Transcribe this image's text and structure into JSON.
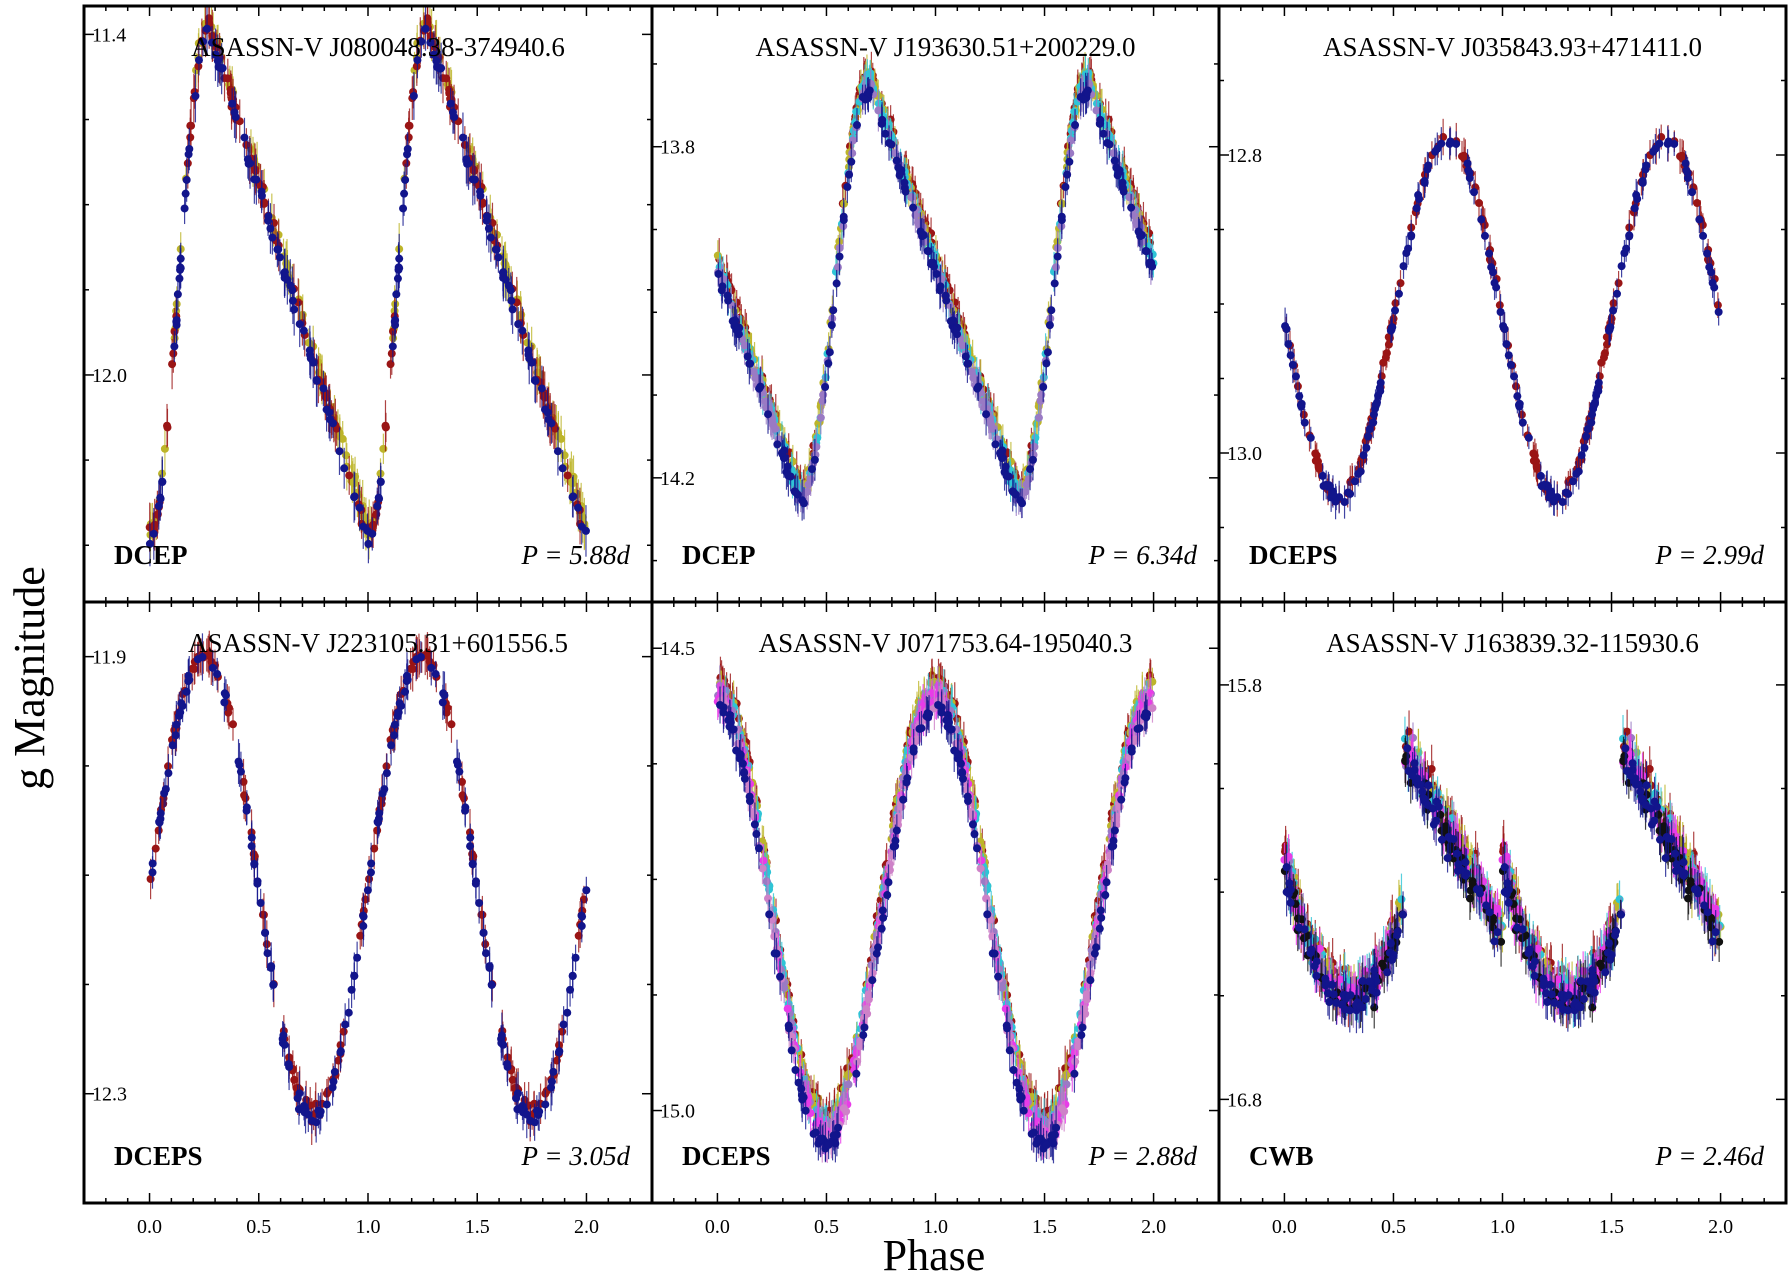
{
  "figure": {
    "xlabel": "Phase",
    "ylabel": "g  Magnitude"
  },
  "chart_data": [
    {
      "type": "scatter",
      "title": "ASASSN-V J080048.38-374940.6",
      "variable_type": "DCEP",
      "period_label": "P = 5.88d",
      "shape": "saw",
      "xlim": [
        -0.3,
        2.3
      ],
      "x_ticks": [
        "0.0",
        "0.5",
        "1.0",
        "1.5",
        "2.0"
      ],
      "y_ticks": [
        "11.4",
        "12.0"
      ],
      "y_tick_values": [
        11.4,
        12.0
      ],
      "ylim": [
        12.4,
        11.35
      ],
      "curve": {
        "bright": 11.38,
        "faint": 12.28,
        "max_phase": 0.27,
        "min_phase": 0.0
      },
      "series_colors": [
        "#bdb52a",
        "#9a1515",
        "#12158c"
      ]
    },
    {
      "type": "scatter",
      "title": "ASASSN-V J193630.51+200229.0",
      "variable_type": "DCEP",
      "period_label": "P = 6.34d",
      "shape": "saw",
      "xlim": [
        -0.3,
        2.3
      ],
      "x_ticks": [
        "0.0",
        "0.5",
        "1.0",
        "1.5",
        "2.0"
      ],
      "y_ticks": [
        "13.8",
        "14.2"
      ],
      "y_tick_values": [
        13.8,
        14.2
      ],
      "ylim": [
        14.35,
        13.63
      ],
      "curve": {
        "bright": 13.72,
        "faint": 14.22,
        "max_phase": 0.7,
        "min_phase": 0.38
      },
      "series_colors": [
        "#9a1515",
        "#bdb52a",
        "#2fc4d6",
        "#9a7ac4",
        "#12158c"
      ]
    },
    {
      "type": "scatter",
      "title": "ASASSN-V J035843.93+471411.0",
      "variable_type": "DCEPS",
      "period_label": "P = 2.99d",
      "shape": "sine",
      "xlim": [
        -0.3,
        2.3
      ],
      "x_ticks": [
        "0.0",
        "0.5",
        "1.0",
        "1.5",
        "2.0"
      ],
      "y_ticks": [
        "12.8",
        "13.0"
      ],
      "y_tick_values": [
        12.8,
        13.0
      ],
      "ylim": [
        13.1,
        12.7
      ],
      "curve": {
        "bright": 12.79,
        "faint": 13.03,
        "max_phase": 0.75,
        "min_phase": 0.25
      },
      "series_colors": [
        "#9a1515",
        "#12158c"
      ]
    },
    {
      "type": "scatter",
      "title": "ASASSN-V J223105.31+601556.5",
      "variable_type": "DCEPS",
      "period_label": "P = 3.05d",
      "shape": "sine",
      "xlim": [
        -0.3,
        2.3
      ],
      "x_ticks": [
        "0.0",
        "0.5",
        "1.0",
        "1.5",
        "2.0"
      ],
      "y_ticks": [
        "11.9",
        "12.3"
      ],
      "y_tick_values": [
        11.9,
        12.3
      ],
      "ylim": [
        12.4,
        11.85
      ],
      "curve": {
        "bright": 11.9,
        "faint": 12.32,
        "max_phase": 0.25,
        "min_phase": 0.75
      },
      "series_colors": [
        "#9a1515",
        "#12158c"
      ]
    },
    {
      "type": "scatter",
      "title": "ASASSN-V J071753.64-195040.3",
      "variable_type": "DCEPS",
      "period_label": "P = 2.88d",
      "shape": "sine",
      "xlim": [
        -0.3,
        2.3
      ],
      "x_ticks": [
        "0.0",
        "0.5",
        "1.0",
        "1.5",
        "2.0"
      ],
      "y_ticks": [
        "14.5",
        "15.0"
      ],
      "y_tick_values": [
        14.5,
        15.0
      ],
      "ylim": [
        15.1,
        14.45
      ],
      "curve": {
        "bright": 14.55,
        "faint": 15.02,
        "max_phase": 0.0,
        "min_phase": 0.45
      },
      "series_colors": [
        "#9a1515",
        "#bdb52a",
        "#2fc4d6",
        "#9a7ac4",
        "#e83ce8",
        "#ce82c8",
        "#12158c"
      ]
    },
    {
      "type": "scatter",
      "title": "ASASSN-V J163839.32-115930.6",
      "variable_type": "CWB",
      "period_label": "P = 2.46d",
      "shape": "square",
      "xlim": [
        -0.3,
        2.3
      ],
      "x_ticks": [
        "0.0",
        "0.5",
        "1.0",
        "1.5",
        "2.0"
      ],
      "y_ticks": [
        "15.8",
        "16.8"
      ],
      "y_tick_values": [
        15.8,
        16.8
      ],
      "ylim": [
        17.05,
        15.6
      ],
      "curve": {
        "bright": 15.95,
        "faint": 16.55,
        "max_phase": 0.75,
        "min_phase": 0.3
      },
      "series_colors": [
        "#9a1515",
        "#bdb52a",
        "#2fc4d6",
        "#9a7ac4",
        "#e83ce8",
        "#111111",
        "#12158c"
      ]
    }
  ]
}
